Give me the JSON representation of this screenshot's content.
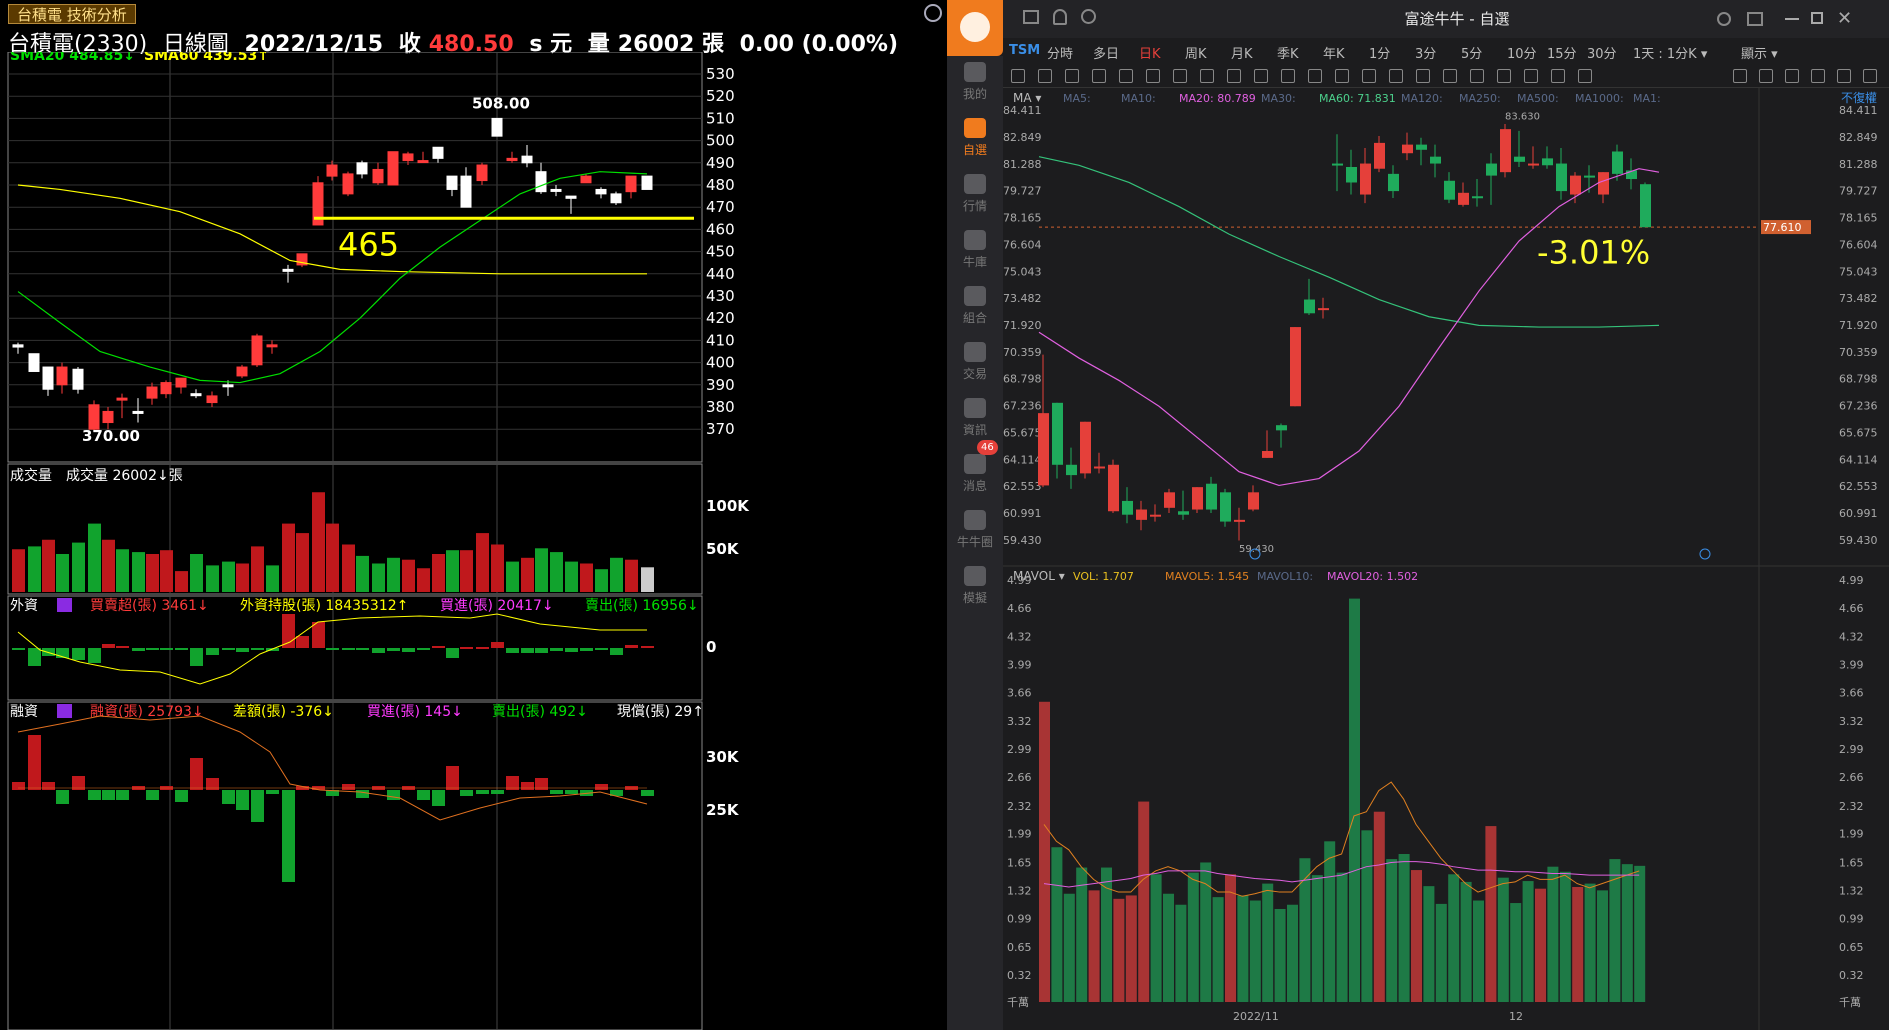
{
  "left": {
    "badge": "台積電 技術分析",
    "title": {
      "name": "台積電(2330)",
      "period": "日線圖",
      "date": "2022/12/15",
      "close_label": "收",
      "close": "480.50",
      "unit_label": "s 元",
      "vol_label": "量",
      "volume": "26002 張",
      "change": "0.00 (0.00%)"
    },
    "sma": {
      "sma20_label": "SMA20",
      "sma20": "484.85",
      "sma60_label": "SMA60",
      "sma60": "439.53"
    },
    "price_axis": [
      "530",
      "520",
      "510",
      "500",
      "490",
      "480",
      "470",
      "460",
      "450",
      "440",
      "430",
      "420",
      "410",
      "400",
      "390",
      "380",
      "370"
    ],
    "annotation_465": "465",
    "high_label": "508.00",
    "low_label": "370.00",
    "vol_panel": {
      "title": "成交量",
      "label": "成交量",
      "value": "26002",
      "unit": "張",
      "axis": [
        "100K",
        "50K"
      ]
    },
    "foreign": {
      "title": "外資",
      "items": [
        {
          "label": "買賣超(張)",
          "value": "3461"
        },
        {
          "label": "外資持股(張)",
          "value": "18435312"
        },
        {
          "label": "買進(張)",
          "value": "20417"
        },
        {
          "label": "賣出(張)",
          "value": "16956"
        }
      ],
      "axis": "0"
    },
    "margin": {
      "title": "融資",
      "items": [
        {
          "label": "融資(張)",
          "value": "25793"
        },
        {
          "label": "差額(張)",
          "value": "-376"
        },
        {
          "label": "買進(張)",
          "value": "145"
        },
        {
          "label": "賣出(張)",
          "value": "492"
        },
        {
          "label": "現償(張)",
          "value": "29"
        }
      ],
      "axis": [
        "30K",
        "25K"
      ]
    },
    "colors": {
      "up": "#ff3b3b",
      "down": "#ffffff",
      "yellow": "#ffff00"
    }
  },
  "right": {
    "window_title": "富途牛牛 - 自選",
    "symbol": "TSM",
    "periods": [
      "分時",
      "多日",
      "日K",
      "周K",
      "月K",
      "季K",
      "年K",
      "1分",
      "3分",
      "5分",
      "10分",
      "15分",
      "30分"
    ],
    "active_period": "日K",
    "interval": "1天 : 1分K",
    "display": "顯示",
    "side_nav": [
      {
        "label": "我的"
      },
      {
        "label": "自選"
      },
      {
        "label": "行情"
      },
      {
        "label": "牛庫"
      },
      {
        "label": "組合"
      },
      {
        "label": "交易"
      },
      {
        "label": "資訊"
      },
      {
        "label": "消息"
      },
      {
        "label": "牛牛圈"
      },
      {
        "label": "模擬"
      }
    ],
    "msg_badge": "46",
    "ma_legend": {
      "label": "MA",
      "items": [
        {
          "k": "MA5:",
          "v": ""
        },
        {
          "k": "MA10:",
          "v": ""
        },
        {
          "k": "MA20:",
          "v": "80.789"
        },
        {
          "k": "MA30:",
          "v": ""
        },
        {
          "k": "MA60:",
          "v": "71.831"
        },
        {
          "k": "MA120:",
          "v": ""
        },
        {
          "k": "MA250:",
          "v": ""
        },
        {
          "k": "MA500:",
          "v": ""
        },
        {
          "k": "MA1000:",
          "v": ""
        },
        {
          "k": "MA1:",
          "v": ""
        }
      ],
      "right": "不復權"
    },
    "price_axis": [
      "84.411",
      "82.849",
      "81.288",
      "79.727",
      "78.165",
      "76.604",
      "75.043",
      "73.482",
      "71.920",
      "70.359",
      "68.798",
      "67.236",
      "65.675",
      "64.114",
      "62.553",
      "60.991",
      "59.430"
    ],
    "last_price": "77.610",
    "high_label": "83.630",
    "low_label": "59.430",
    "pct": "-3.01%",
    "vol_legend": {
      "label": "MAVOL",
      "items": [
        {
          "k": "VOL:",
          "v": "1.707"
        },
        {
          "k": "MAVOL5:",
          "v": "1.545"
        },
        {
          "k": "MAVOL10:",
          "v": ""
        },
        {
          "k": "MAVOL20:",
          "v": "1.502"
        }
      ]
    },
    "vol_axis": [
      "4.99",
      "4.66",
      "4.32",
      "3.99",
      "3.66",
      "3.32",
      "2.99",
      "2.66",
      "2.32",
      "1.99",
      "1.65",
      "1.32",
      "0.99",
      "0.65",
      "0.32",
      "千萬"
    ],
    "date_labels": [
      "2022/11",
      "12"
    ],
    "colors": {
      "up": "#e5403a",
      "down": "#1fab5c"
    }
  }
}
